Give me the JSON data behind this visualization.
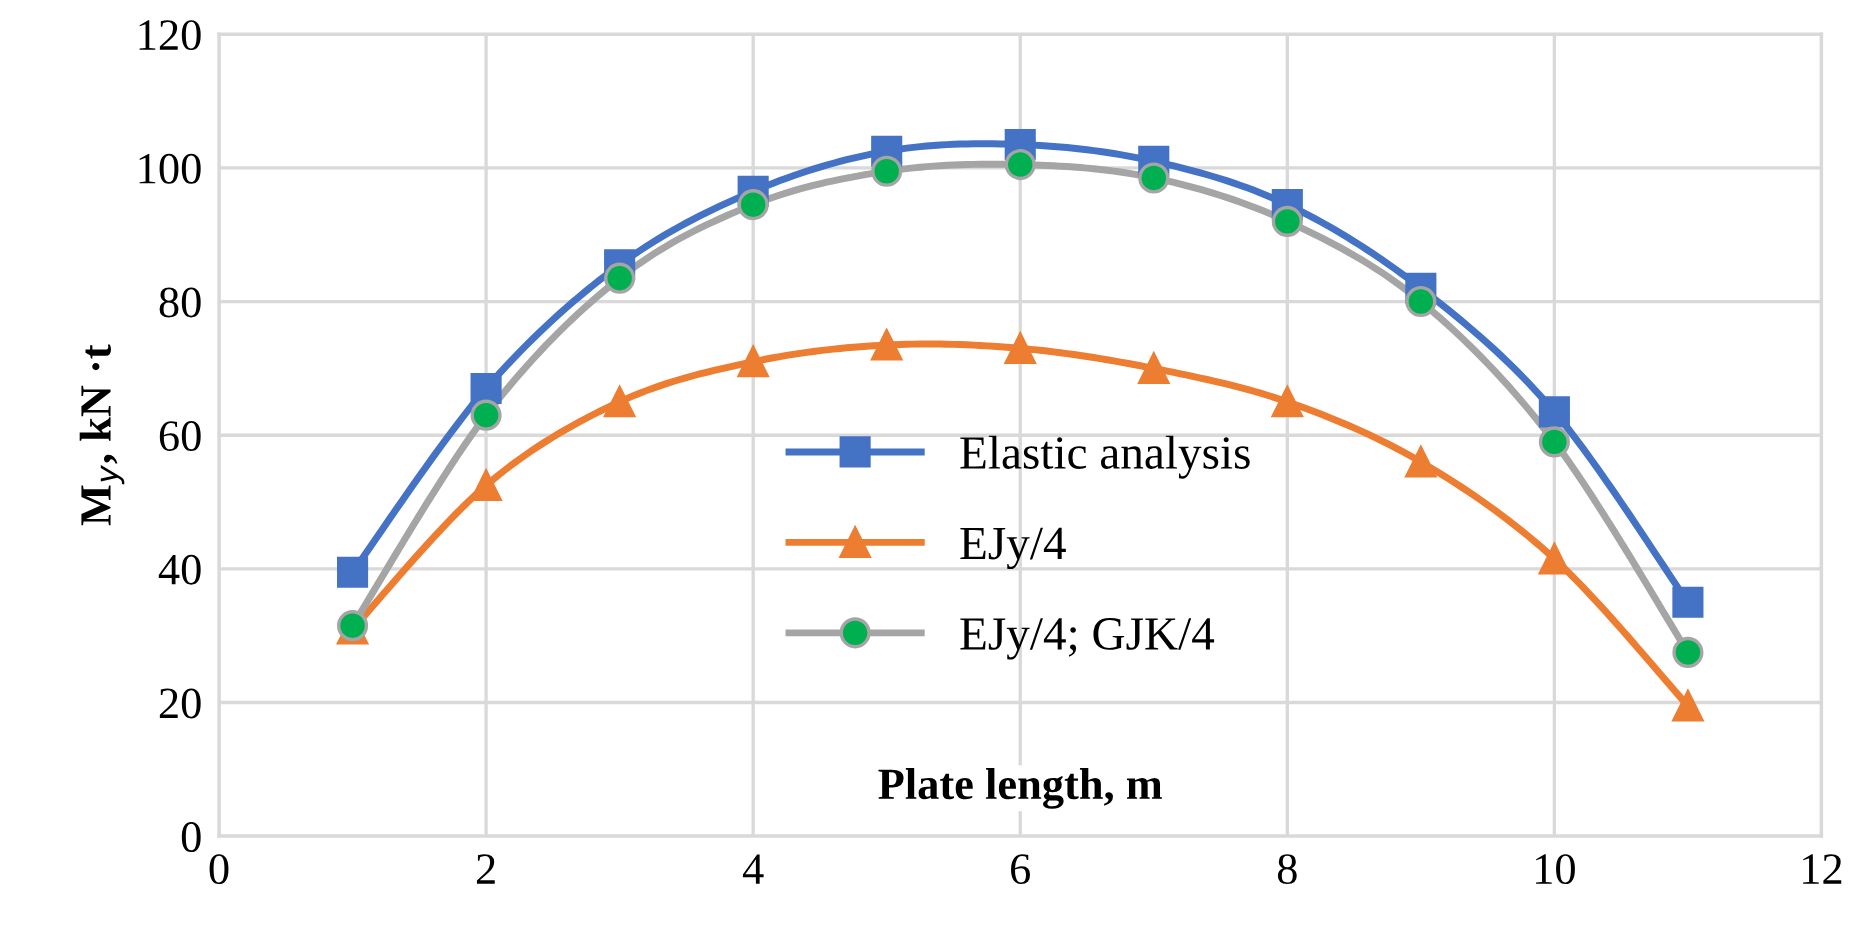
{
  "chart_data": {
    "type": "line",
    "xlabel": "Plate length, m",
    "ylabel": "M$_{y}$, kN ·t",
    "x": [
      1,
      2,
      3,
      4,
      5,
      6,
      7,
      8,
      9,
      10,
      11
    ],
    "series": [
      {
        "name": "Elastic analysis",
        "color": "#4472c4",
        "marker": "square",
        "values": [
          39.5,
          67,
          85.5,
          96.5,
          102.5,
          103.5,
          101,
          94.5,
          82,
          63.5,
          35
        ]
      },
      {
        "name": "EJy/4",
        "color": "#ed7d31",
        "marker": "triangle",
        "values": [
          31,
          52.5,
          65,
          71,
          73.5,
          73,
          70,
          65,
          56,
          41.5,
          19.5
        ]
      },
      {
        "name": "EJy/4; GJK/4",
        "color": "#a5a5a5",
        "colors": [
          "#00b050",
          "#00b050",
          "#00b050",
          "#00b050",
          "#00b050",
          "#00b050",
          "#00b050",
          "#00b050",
          "#00b050",
          "#00b050",
          "#00b050"
        ],
        "marker": "circle",
        "values": [
          31.5,
          63,
          83.5,
          94.5,
          99.5,
          100.5,
          98.5,
          92,
          80,
          59,
          27.5
        ]
      }
    ],
    "xlim": [
      0,
      12
    ],
    "xticks": [
      0,
      2,
      4,
      6,
      8,
      10,
      12
    ],
    "ylim": [
      0,
      120
    ],
    "yticks": [
      0,
      20,
      40,
      60,
      80,
      100,
      120
    ],
    "grid": true,
    "legend": "center",
    "line_style": "solid"
  }
}
